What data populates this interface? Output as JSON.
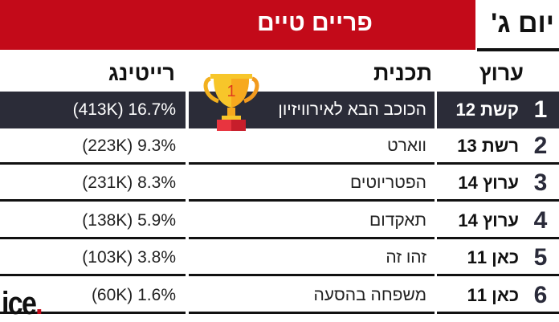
{
  "header": {
    "title": "פריים טיים",
    "day_tab": "יום ג'"
  },
  "columns": {
    "channel": "ערוץ",
    "program": "תכנית",
    "rating": "רייטינג"
  },
  "rows": [
    {
      "rank": "1",
      "channel": "קשת 12",
      "program": "הכוכב הבא לאירוויזיון",
      "rating": "(413K) 16.7%",
      "highlight": true
    },
    {
      "rank": "2",
      "channel": "רשת 13",
      "program": "ווארט",
      "rating": "(223K) 9.3%"
    },
    {
      "rank": "3",
      "channel": "ערוץ 14",
      "program": "הפטריוטים",
      "rating": "(231K) 8.3%"
    },
    {
      "rank": "4",
      "channel": "ערוץ 14",
      "program": "תאקדום",
      "rating": "(138K) 5.9%"
    },
    {
      "rank": "5",
      "channel": "כאן 11",
      "program": "זהו זה",
      "rating": "(103K) 3.8%"
    },
    {
      "rank": "6",
      "channel": "כאן 11",
      "program": "משפחה בהסעה",
      "rating": "(60K) 1.6%"
    }
  ],
  "trophy": {
    "icon": "trophy-icon",
    "label": "1"
  },
  "logo": {
    "text": "ice"
  },
  "colors": {
    "accent": "#c30a19",
    "highlight_row": "#2b2c38"
  }
}
